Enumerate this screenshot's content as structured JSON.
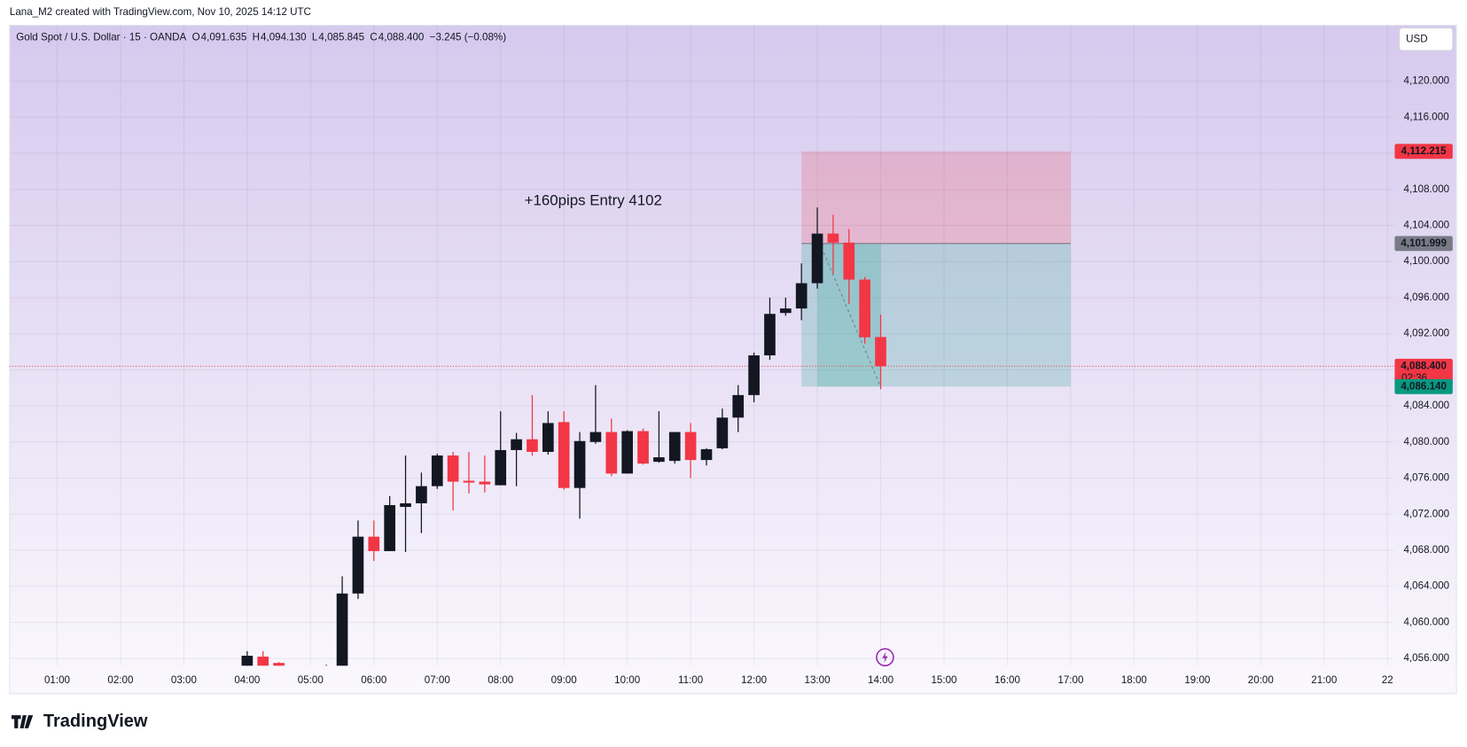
{
  "header": {
    "attribution": "Lana_M2 created with TradingView.com, Nov 10, 2025 14:12 UTC",
    "logo": "TradingView",
    "currency": "USD"
  },
  "chart_data": {
    "type": "candlestick",
    "title": "Gold Spot / U.S. Dollar · 15 · OANDA",
    "ohlc_legend": [
      {
        "key": "O",
        "text": "4,091.635"
      },
      {
        "key": "H",
        "text": "4,094.130"
      },
      {
        "key": "L",
        "text": "4,085.845"
      },
      {
        "key": "C",
        "text": "4,088.400"
      }
    ],
    "change": "−3.245 (−0.08%)",
    "annotation": "+160pips Entry 4102",
    "x": [
      4,
      4.25,
      4.5,
      5.25,
      5.5,
      5.75,
      6,
      6.25,
      6.5,
      6.75,
      7,
      7.25,
      7.5,
      7.75,
      8,
      8.25,
      8.5,
      8.75,
      9,
      9.25,
      9.5,
      9.75,
      10,
      10.25,
      10.5,
      10.75,
      11,
      11.25,
      11.5,
      11.75,
      12,
      12.25,
      12.5,
      12.75,
      13,
      13.25,
      13.5,
      13.75,
      14
    ],
    "open": [
      4055.0,
      4056.2,
      4055.5,
      4054.5,
      4054.8,
      4063.2,
      4069.5,
      4067.9,
      4072.8,
      4073.2,
      4075.1,
      4078.5,
      4075.7,
      4075.6,
      4075.2,
      4079.1,
      4080.3,
      4078.9,
      4082.2,
      4074.9,
      4080.0,
      4081.1,
      4076.5,
      4081.2,
      4077.8,
      4077.9,
      4081.1,
      4078.0,
      4079.3,
      4082.7,
      4085.2,
      4089.6,
      4094.3,
      4094.8,
      4097.6,
      4103.1,
      4102.1,
      4098.0,
      4091.635
    ],
    "high": [
      4056.8,
      4056.8,
      4055.6,
      4055.3,
      4065.1,
      4071.3,
      4071.3,
      4074.0,
      4078.5,
      4076.6,
      4078.7,
      4078.9,
      4078.9,
      4078.5,
      4083.4,
      4081.0,
      4085.2,
      4083.4,
      4083.4,
      4081.1,
      4086.3,
      4082.6,
      4081.3,
      4081.5,
      4083.4,
      4081.1,
      4082.1,
      4079.3,
      4083.7,
      4086.3,
      4089.9,
      4096.0,
      4096.0,
      4099.8,
      4106.0,
      4105.2,
      4103.6,
      4098.3,
      4094.13
    ],
    "low": [
      4054.5,
      4054.8,
      4054.5,
      4054.0,
      4054.0,
      4062.6,
      4066.8,
      4067.9,
      4067.8,
      4069.9,
      4074.8,
      4072.4,
      4074.3,
      4074.4,
      4075.2,
      4075.1,
      4078.5,
      4078.6,
      4074.7,
      4071.5,
      4079.8,
      4076.2,
      4076.5,
      4077.5,
      4077.7,
      4077.6,
      4076.0,
      4077.4,
      4079.2,
      4081.1,
      4084.4,
      4089.1,
      4094.0,
      4093.5,
      4097.0,
      4098.6,
      4095.3,
      4090.9,
      4085.845
    ],
    "close": [
      4056.3,
      4055.0,
      4054.8,
      4055.0,
      4063.2,
      4069.5,
      4067.9,
      4073.0,
      4073.2,
      4075.1,
      4078.5,
      4075.6,
      4075.5,
      4075.3,
      4079.1,
      4080.3,
      4078.9,
      4082.1,
      4074.9,
      4080.1,
      4081.1,
      4076.5,
      4081.2,
      4077.6,
      4078.3,
      4081.1,
      4078.0,
      4079.2,
      4082.7,
      4085.2,
      4089.6,
      4094.2,
      4094.8,
      4097.6,
      4103.1,
      4102.1,
      4098.0,
      4091.6,
      4088.4
    ],
    "up_color": "#131722",
    "down_color": "#f23645",
    "xlim": [
      0.25,
      22.1
    ],
    "xticks": [
      {
        "value": 1,
        "label": "01:00"
      },
      {
        "value": 2,
        "label": "02:00"
      },
      {
        "value": 3,
        "label": "03:00"
      },
      {
        "value": 4,
        "label": "04:00"
      },
      {
        "value": 5,
        "label": "05:00"
      },
      {
        "value": 6,
        "label": "06:00"
      },
      {
        "value": 7,
        "label": "07:00"
      },
      {
        "value": 8,
        "label": "08:00"
      },
      {
        "value": 9,
        "label": "09:00"
      },
      {
        "value": 10,
        "label": "10:00"
      },
      {
        "value": 11,
        "label": "11:00"
      },
      {
        "value": 12,
        "label": "12:00"
      },
      {
        "value": 13,
        "label": "13:00"
      },
      {
        "value": 14,
        "label": "14:00"
      },
      {
        "value": 15,
        "label": "15:00"
      },
      {
        "value": 16,
        "label": "16:00"
      },
      {
        "value": 17,
        "label": "17:00"
      },
      {
        "value": 18,
        "label": "18:00"
      },
      {
        "value": 19,
        "label": "19:00"
      },
      {
        "value": 20,
        "label": "20:00"
      },
      {
        "value": 21,
        "label": "21:00"
      },
      22
    ],
    "ylim": [
      4055.2,
      4126.2
    ],
    "yticks": [
      {
        "value": 4056,
        "label": "4,056.000"
      },
      {
        "value": 4060,
        "label": "4,060.000"
      },
      {
        "value": 4064,
        "label": "4,064.000"
      },
      {
        "value": 4068,
        "label": "4,068.000"
      },
      {
        "value": 4072,
        "label": "4,072.000"
      },
      {
        "value": 4076,
        "label": "4,076.000"
      },
      {
        "value": 4080,
        "label": "4,080.000"
      },
      {
        "value": 4084,
        "label": "4,084.000"
      },
      {
        "value": 4088,
        "label": "4,088.000"
      },
      {
        "value": 4092,
        "label": "4,092.000"
      },
      {
        "value": 4096,
        "label": "4,096.000"
      },
      {
        "value": 4100,
        "label": "4,100.000"
      },
      {
        "value": 4104,
        "label": "4,104.000"
      },
      {
        "value": 4108,
        "label": "4,108.000"
      },
      {
        "value": 4112,
        "label": "4,112.000"
      },
      {
        "value": 4116,
        "label": "4,116.000"
      },
      {
        "value": 4120,
        "label": "4,120.000"
      }
    ],
    "grid": true,
    "position": {
      "x_start": 12.75,
      "x_end": 17,
      "stop": {
        "value": 4112.215,
        "label": "4,112.215"
      },
      "entry": {
        "value": 4101.999,
        "label": "4,101.999"
      },
      "target": {
        "value": 4086.14,
        "label": "4,086.140"
      }
    },
    "last_price": {
      "value": 4088.4,
      "label": "4,088.400",
      "countdown": "02:36"
    },
    "trend_line": {
      "x": [
        13.1,
        14
      ],
      "y": [
        4101.0,
        4086.1
      ]
    }
  }
}
